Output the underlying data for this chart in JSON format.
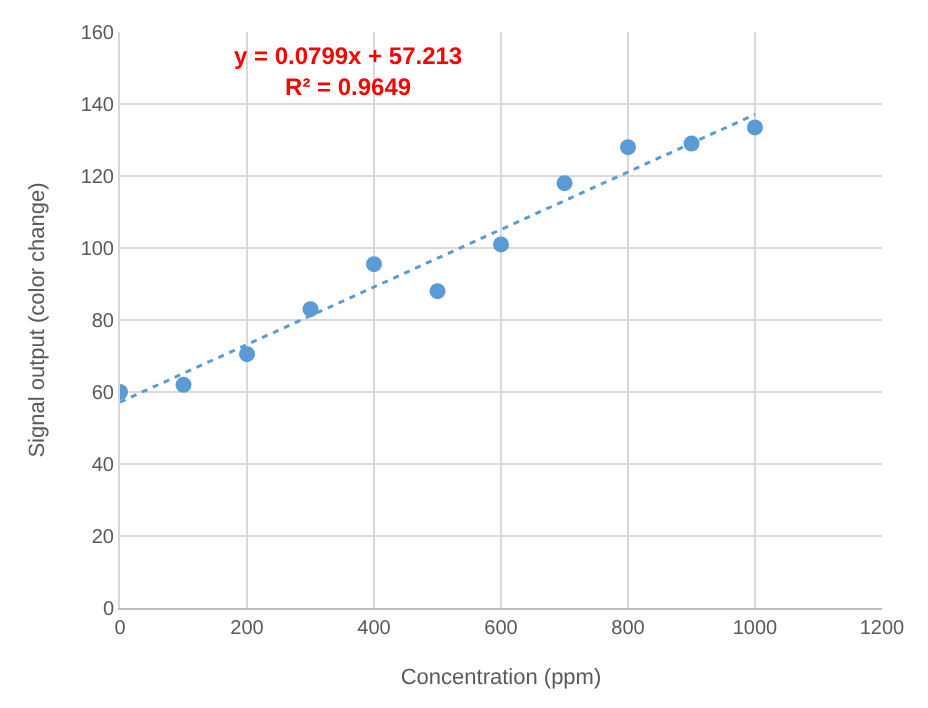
{
  "chart_data": {
    "type": "scatter",
    "xlabel": "Concentration (ppm)",
    "ylabel": "Signal output (color change)",
    "xlim": [
      0,
      1200
    ],
    "xticks": [
      0,
      200,
      400,
      600,
      800,
      1000,
      1200
    ],
    "ylim": [
      0,
      160
    ],
    "yticks": [
      0,
      20,
      40,
      60,
      80,
      100,
      120,
      140,
      160
    ],
    "grid": true,
    "marker": "circle",
    "series": [
      {
        "color": "#5b9bd5",
        "x": [
          0,
          100,
          200,
          300,
          400,
          500,
          600,
          700,
          800,
          900,
          1000
        ],
        "values": [
          60,
          62,
          70.5,
          83,
          95.5,
          88,
          101,
          118,
          128,
          129,
          133.5
        ]
      },
      {
        "type": "line",
        "color": "#5b9bd5",
        "line_style": "dotted",
        "marker": "none",
        "x": [
          0,
          1000
        ],
        "values": [
          57.2,
          137.1
        ]
      }
    ],
    "annotations": [
      "y = 0.0799x + 57.213\nR² = 0.9649"
    ]
  }
}
